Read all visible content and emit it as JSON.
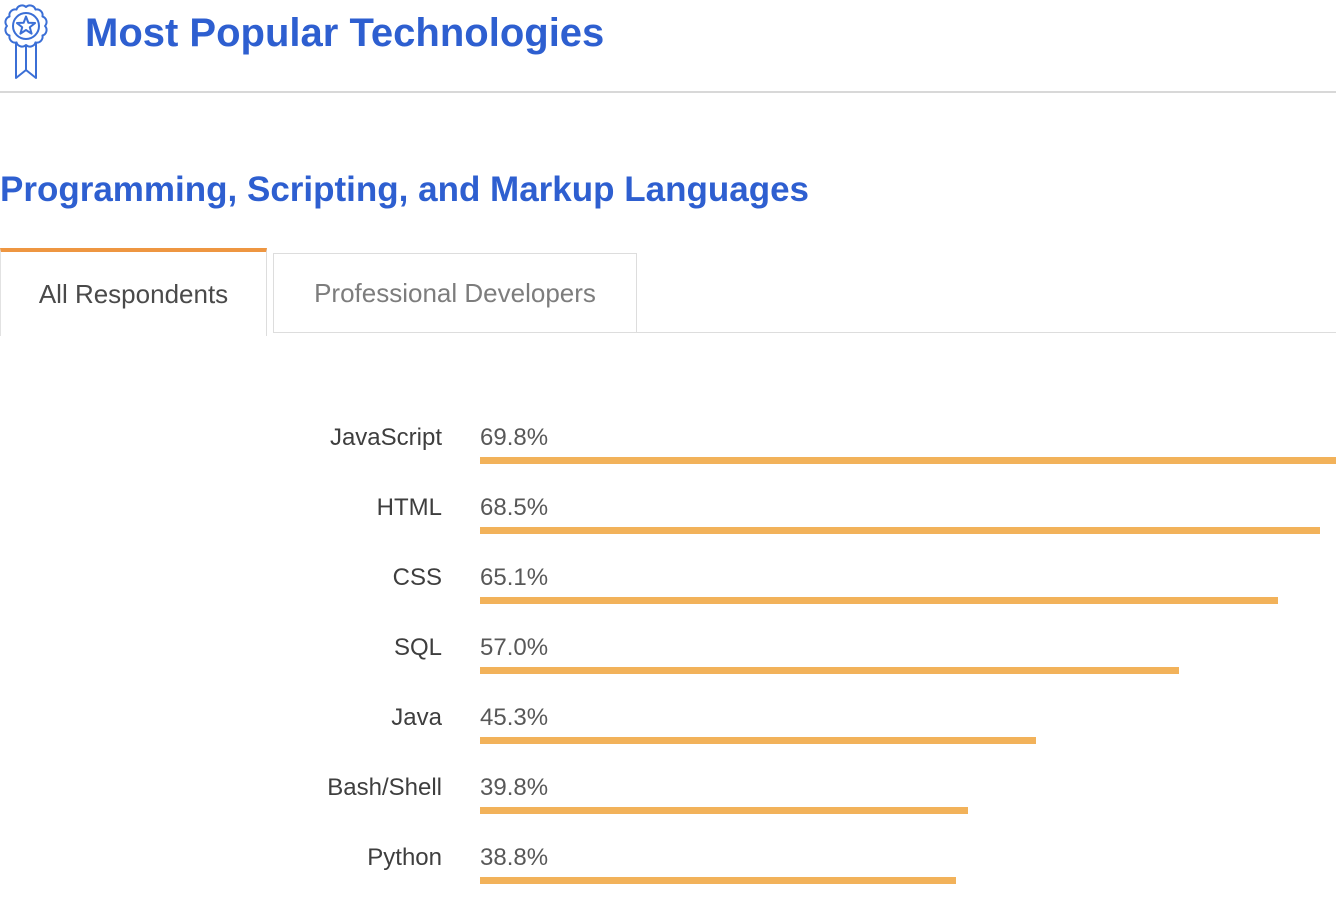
{
  "header": {
    "title": "Most Popular Technologies",
    "icon": "award-ribbon-icon"
  },
  "section": {
    "title": "Programming, Scripting, and Markup Languages"
  },
  "tabs": [
    {
      "label": "All Respondents",
      "active": true
    },
    {
      "label": "Professional Developers",
      "active": false
    }
  ],
  "chart_data": {
    "type": "bar",
    "orientation": "horizontal",
    "title": "Programming, Scripting, and Markup Languages — All Respondents",
    "categories": [
      "JavaScript",
      "HTML",
      "CSS",
      "SQL",
      "Java",
      "Bash/Shell",
      "Python"
    ],
    "values": [
      69.8,
      68.5,
      65.1,
      57.0,
      45.3,
      39.8,
      38.8
    ],
    "value_labels": [
      "69.8%",
      "68.5%",
      "65.1%",
      "57.0%",
      "45.3%",
      "39.8%",
      "38.8%"
    ],
    "unit": "%",
    "xlim": [
      0,
      69.8
    ],
    "grid": false,
    "legend": "none",
    "bar_color": "#f2b25a"
  },
  "colors": {
    "accent_blue": "#2e5fd0",
    "tab_active_border": "#ee9641",
    "bar": "#f2b25a",
    "divider": "#d8d8d8",
    "label_text": "#3e3e3e",
    "value_text": "#585858"
  }
}
